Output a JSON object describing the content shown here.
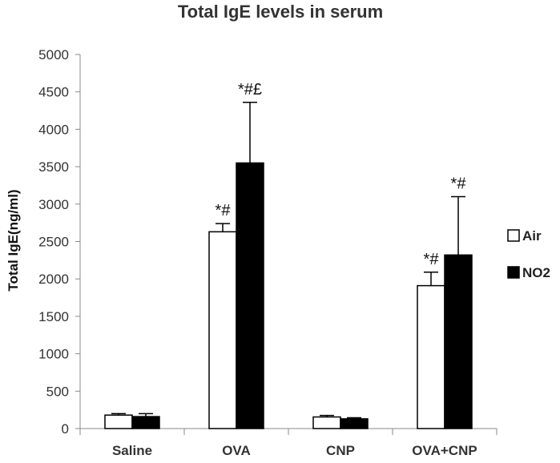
{
  "chart_data": {
    "type": "bar",
    "title": "Total IgE  levels in serum",
    "ylabel": "Total IgE(ng/ml)",
    "xlabel": "",
    "categories": [
      "Saline",
      "OVA",
      "CNP",
      "OVA+CNP"
    ],
    "ylim": [
      0,
      5000
    ],
    "yticks": [
      0,
      500,
      1000,
      1500,
      2000,
      2500,
      3000,
      3500,
      4000,
      4500,
      5000
    ],
    "grid": false,
    "legend_position": "right",
    "series": [
      {
        "name": "Air",
        "fill": "#ffffff",
        "stroke": "#000000",
        "values": [
          180,
          2630,
          155,
          1910
        ],
        "errors": [
          20,
          110,
          20,
          180
        ],
        "annotations": [
          "",
          "*#",
          "",
          "*#"
        ]
      },
      {
        "name": "NO2",
        "fill": "#000000",
        "stroke": "#000000",
        "values": [
          160,
          3550,
          130,
          2320
        ],
        "errors": [
          40,
          810,
          15,
          780
        ],
        "annotations": [
          "",
          "*#£",
          "",
          "*#"
        ]
      }
    ]
  }
}
